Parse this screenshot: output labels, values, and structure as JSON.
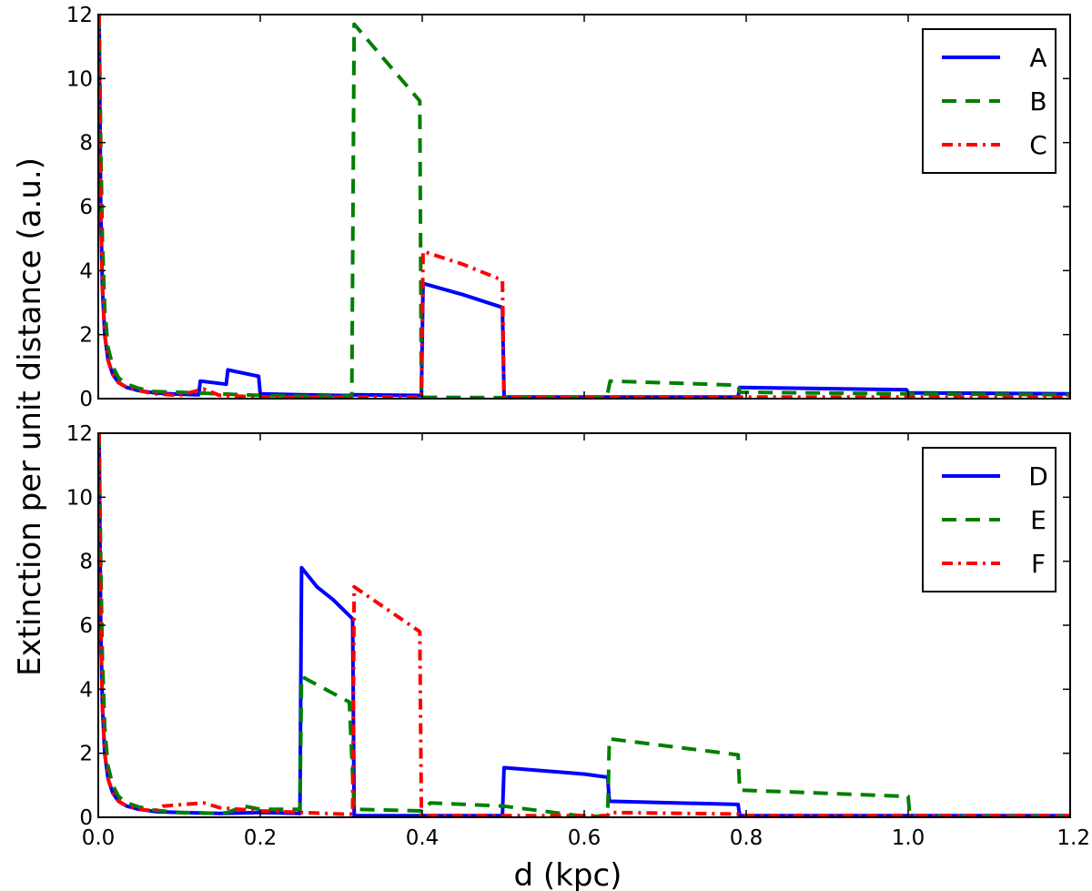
{
  "figure": {
    "ylabel": "Extinction per unit distance (a.u.)",
    "xlabel": "d (kpc)"
  },
  "colors": {
    "blue": "#0000ff",
    "green": "#007f00",
    "red": "#ff0000"
  },
  "chart_data": [
    {
      "type": "line",
      "panel": "top",
      "xlim": [
        0,
        1.2
      ],
      "ylim": [
        0,
        12
      ],
      "xticks": [
        0.0,
        0.2,
        0.4,
        0.6,
        0.8,
        1.0,
        1.2
      ],
      "yticks": [
        0,
        2,
        4,
        6,
        8,
        10,
        12
      ],
      "legend_position": "top-right",
      "series": [
        {
          "name": "A",
          "style": "solid",
          "color": "#0000ff",
          "x": [
            0.001,
            0.003,
            0.005,
            0.008,
            0.012,
            0.018,
            0.025,
            0.035,
            0.05,
            0.07,
            0.09,
            0.12,
            0.124,
            0.126,
            0.158,
            0.16,
            0.198,
            0.2,
            0.25,
            0.3,
            0.314,
            0.316,
            0.397,
            0.399,
            0.401,
            0.45,
            0.499,
            0.501,
            0.6,
            0.79,
            0.792,
            0.998,
            1.0,
            1.2
          ],
          "y": [
            12,
            6,
            3.5,
            2.0,
            1.2,
            0.75,
            0.5,
            0.35,
            0.25,
            0.18,
            0.15,
            0.12,
            0.12,
            0.55,
            0.45,
            0.9,
            0.7,
            0.15,
            0.12,
            0.1,
            0.1,
            0.12,
            0.1,
            0.1,
            3.6,
            3.25,
            2.85,
            0.05,
            0.05,
            0.05,
            0.35,
            0.28,
            0.18,
            0.15
          ]
        },
        {
          "name": "B",
          "style": "dashed",
          "color": "#007f00",
          "x": [
            0.001,
            0.003,
            0.005,
            0.008,
            0.012,
            0.018,
            0.025,
            0.035,
            0.05,
            0.07,
            0.1,
            0.15,
            0.2,
            0.25,
            0.313,
            0.316,
            0.397,
            0.399,
            0.401,
            0.5,
            0.6,
            0.628,
            0.63,
            0.632,
            0.79,
            0.792,
            1.0,
            1.2
          ],
          "y": [
            12,
            8,
            5,
            2.8,
            1.6,
            1.0,
            0.65,
            0.45,
            0.32,
            0.22,
            0.2,
            0.15,
            0.1,
            0.08,
            0.08,
            11.7,
            9.3,
            0.04,
            0.04,
            0.03,
            0.03,
            0.03,
            0.3,
            0.55,
            0.42,
            0.2,
            0.15,
            0.12
          ]
        },
        {
          "name": "C",
          "style": "dashdot",
          "color": "#ff0000",
          "x": [
            0.001,
            0.003,
            0.005,
            0.008,
            0.012,
            0.018,
            0.025,
            0.035,
            0.05,
            0.07,
            0.1,
            0.13,
            0.15,
            0.2,
            0.25,
            0.3,
            0.397,
            0.399,
            0.401,
            0.45,
            0.499,
            0.501,
            0.6,
            0.8,
            1.0,
            1.2
          ],
          "y": [
            12,
            6,
            3.5,
            2.0,
            1.2,
            0.75,
            0.5,
            0.35,
            0.25,
            0.15,
            0.1,
            0.3,
            0.1,
            0.05,
            0.05,
            0.05,
            0.05,
            0.05,
            4.6,
            4.2,
            3.7,
            0.05,
            0.05,
            0.05,
            0.05,
            0.05
          ]
        }
      ]
    },
    {
      "type": "line",
      "panel": "bottom",
      "xlim": [
        0,
        1.2
      ],
      "ylim": [
        0,
        12
      ],
      "xticks": [
        0.0,
        0.2,
        0.4,
        0.6,
        0.8,
        1.0,
        1.2
      ],
      "yticks": [
        0,
        2,
        4,
        6,
        8,
        10,
        12
      ],
      "legend_position": "top-right",
      "series": [
        {
          "name": "D",
          "style": "solid",
          "color": "#0000ff",
          "x": [
            0.001,
            0.003,
            0.005,
            0.008,
            0.012,
            0.018,
            0.025,
            0.035,
            0.05,
            0.07,
            0.1,
            0.15,
            0.2,
            0.249,
            0.251,
            0.27,
            0.29,
            0.314,
            0.316,
            0.4,
            0.499,
            0.501,
            0.6,
            0.629,
            0.631,
            0.79,
            0.792,
            1.0,
            1.2
          ],
          "y": [
            12,
            6,
            3.5,
            2.0,
            1.2,
            0.75,
            0.5,
            0.35,
            0.25,
            0.18,
            0.15,
            0.12,
            0.15,
            0.12,
            7.8,
            7.2,
            6.8,
            6.2,
            0.05,
            0.05,
            0.05,
            1.55,
            1.35,
            1.25,
            0.5,
            0.4,
            0.05,
            0.05,
            0.05
          ]
        },
        {
          "name": "E",
          "style": "dashed",
          "color": "#007f00",
          "x": [
            0.001,
            0.003,
            0.005,
            0.008,
            0.012,
            0.018,
            0.025,
            0.035,
            0.05,
            0.07,
            0.1,
            0.15,
            0.16,
            0.18,
            0.2,
            0.249,
            0.251,
            0.31,
            0.316,
            0.4,
            0.41,
            0.5,
            0.6,
            0.629,
            0.631,
            0.79,
            0.792,
            1.0,
            1.002,
            1.2
          ],
          "y": [
            12,
            8,
            5,
            2.8,
            1.6,
            1.0,
            0.65,
            0.45,
            0.32,
            0.22,
            0.15,
            0.12,
            0.15,
            0.35,
            0.25,
            0.25,
            4.4,
            3.6,
            0.25,
            0.2,
            0.45,
            0.35,
            0.03,
            0.03,
            2.45,
            1.95,
            0.85,
            0.65,
            0.03,
            0.03
          ]
        },
        {
          "name": "F",
          "style": "dashdot",
          "color": "#ff0000",
          "x": [
            0.001,
            0.003,
            0.005,
            0.008,
            0.012,
            0.018,
            0.025,
            0.035,
            0.05,
            0.07,
            0.08,
            0.13,
            0.15,
            0.2,
            0.25,
            0.3,
            0.314,
            0.316,
            0.397,
            0.399,
            0.45,
            0.5,
            0.629,
            0.631,
            0.79,
            0.792,
            1.0,
            1.2
          ],
          "y": [
            12,
            6,
            3.5,
            2.0,
            1.2,
            0.75,
            0.5,
            0.35,
            0.25,
            0.2,
            0.35,
            0.45,
            0.3,
            0.2,
            0.15,
            0.1,
            0.1,
            7.2,
            5.8,
            0.05,
            0.05,
            0.05,
            0.05,
            0.15,
            0.1,
            0.05,
            0.05,
            0.05
          ]
        }
      ]
    }
  ]
}
